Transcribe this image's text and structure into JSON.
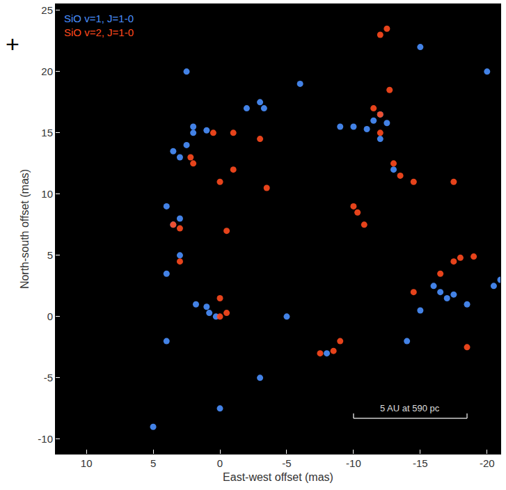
{
  "chart_data": {
    "type": "scatter",
    "xlabel": "East-west offset (mas)",
    "ylabel": "North-south offset (mas)",
    "xlim": [
      12.3,
      -21
    ],
    "ylim": [
      -11.2,
      25.5
    ],
    "xticks": [
      10,
      5,
      0,
      -5,
      -10,
      -15,
      -20
    ],
    "yticks": [
      -10,
      -5,
      0,
      5,
      10,
      15,
      20,
      25
    ],
    "grid": false,
    "corner_mark": "+",
    "scale_bar": {
      "label": "5 AU at 590 pc",
      "x": [
        -10,
        -18.5
      ],
      "y": -8.3
    },
    "series": [
      {
        "name": "SiO v=1, J=1-0",
        "color": "#4a90ff",
        "marker": "circle",
        "x": [
          2,
          1,
          2.5,
          3,
          3.5,
          2,
          -3,
          -3.3,
          -2,
          -9,
          -10,
          -11,
          -12,
          -12.5,
          -12,
          -11.5,
          3.5,
          3,
          4,
          3,
          4,
          1.8,
          1,
          0.3,
          0.8,
          -16.5,
          -17.5,
          -16,
          -17,
          -21,
          -20.5,
          -15,
          -18.5,
          -5,
          -13,
          0,
          -3,
          5,
          -6,
          -15,
          -20,
          4,
          2.5,
          -8,
          -14
        ],
        "y": [
          15,
          15.2,
          14,
          13,
          13.5,
          15.5,
          17.5,
          17,
          17,
          15.5,
          15.5,
          15.3,
          16.5,
          15.8,
          14.5,
          16,
          7.5,
          8,
          9,
          5,
          3.5,
          1,
          0.8,
          0,
          0.3,
          2,
          1.8,
          2.5,
          1.5,
          3,
          2.5,
          0.5,
          1,
          0,
          12,
          -7.5,
          -5,
          -9,
          19,
          22,
          20,
          -2,
          20,
          -3,
          -2
        ]
      },
      {
        "name": "SiO v=2, J=1-0",
        "color": "#ff4a1e",
        "marker": "circle",
        "x": [
          2.2,
          2,
          0.5,
          -1,
          -3,
          -1,
          -3.5,
          0,
          -12,
          -12,
          -11.5,
          -12.7,
          -13,
          -13.5,
          -14.5,
          -17.5,
          -10,
          -10.3,
          -10.8,
          3.5,
          3,
          -0.5,
          3,
          0,
          0,
          -0.5,
          -16.5,
          -17.5,
          -18,
          -19,
          -7.5,
          -8.5,
          -14.5,
          -12,
          -12.5,
          -18.5,
          -9
        ],
        "y": [
          13,
          12.5,
          15,
          15,
          14.5,
          12,
          10.5,
          11,
          16.5,
          15,
          17,
          18.5,
          12.5,
          11.5,
          11,
          11,
          9,
          8.5,
          7.5,
          7.5,
          7.2,
          7,
          4.5,
          1.5,
          0,
          0.3,
          3.5,
          4.5,
          4.8,
          4.9,
          -3,
          -2.8,
          2,
          23,
          23.5,
          -2.5,
          -2
        ]
      }
    ]
  }
}
